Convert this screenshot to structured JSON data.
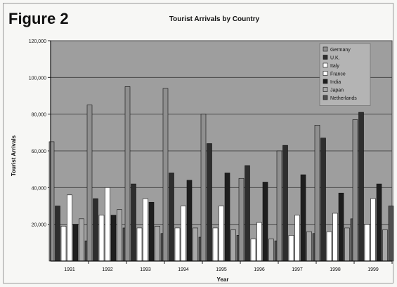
{
  "figure_label": "Figure 2",
  "colors": {
    "plot_bg": "#9e9e9e",
    "grid": "#4a4a4a",
    "Germany": "#8f8f8f",
    "U.K.": "#2e2e2e",
    "Italy": "#ffffff",
    "France": "#ffffff",
    "India": "#1e1e1e",
    "Japan": "#a8a8a8",
    "Netherlands": "#4f4f4f"
  },
  "chart_data": {
    "type": "bar",
    "title": "Tourist Arrivals by Country",
    "xlabel": "Year",
    "ylabel": "Tourist Arrivals",
    "ylim": [
      0,
      120000
    ],
    "yticks": [
      20000,
      40000,
      60000,
      80000,
      100000,
      120000
    ],
    "ytick_labels": [
      "20,000",
      "40,000",
      "60,000",
      "80,000",
      "100,000",
      "120,000"
    ],
    "grid": true,
    "legend_position": "top-right",
    "categories": [
      "1991",
      "1992",
      "1993",
      "1994",
      "1995",
      "1996",
      "1997",
      "1998",
      "1999"
    ],
    "series": [
      {
        "name": "Germany",
        "values": [
          65000,
          85000,
          95000,
          94000,
          80000,
          45000,
          60000,
          74000,
          77000
        ]
      },
      {
        "name": "U.K.",
        "values": [
          30000,
          34000,
          42000,
          48000,
          64000,
          52000,
          63000,
          67000,
          81000
        ]
      },
      {
        "name": "Italy",
        "values": [
          19000,
          25000,
          18000,
          18000,
          18000,
          12000,
          14000,
          16000,
          20000
        ]
      },
      {
        "name": "France",
        "values": [
          36000,
          40000,
          34000,
          30000,
          30000,
          21000,
          25000,
          26000,
          34000
        ]
      },
      {
        "name": "India",
        "values": [
          20000,
          25000,
          32000,
          44000,
          48000,
          43000,
          47000,
          37000,
          42000
        ]
      },
      {
        "name": "Japan",
        "values": [
          23000,
          28000,
          19000,
          18000,
          17000,
          12000,
          16000,
          18000,
          17000
        ]
      },
      {
        "name": "Netherlands",
        "values": [
          11000,
          18000,
          15000,
          13000,
          14000,
          11000,
          15000,
          23000,
          30000
        ]
      }
    ]
  }
}
